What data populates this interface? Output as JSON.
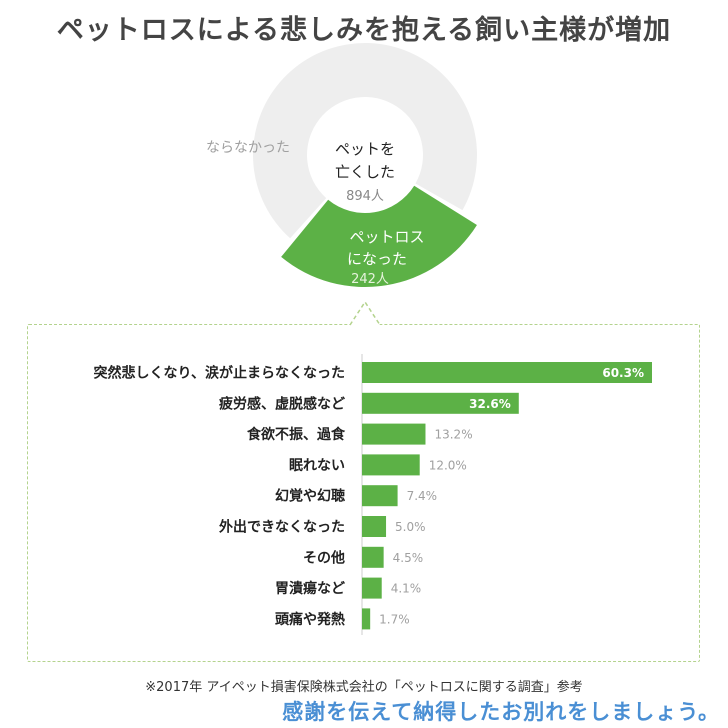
{
  "title": "ペットロスによる悲しみを抱える飼い主様が増加",
  "colors": {
    "accent": "#5cb146",
    "ring_light": "#eeeeee",
    "label_gray": "#a0a0a0",
    "message_blue": "#4a8fd4"
  },
  "chart_data": [
    {
      "type": "pie",
      "categories": [
        "ならなかった",
        "ペットロスになった"
      ],
      "values": [
        652,
        242
      ],
      "center_label": [
        "ペットを",
        "亡くした"
      ],
      "center_value": "894人",
      "slice_labels": {
        "highlight_line1": "ペットロス",
        "highlight_line2": "になった",
        "highlight_value": "242人",
        "rest": "ならなかった"
      }
    },
    {
      "type": "bar",
      "orientation": "horizontal",
      "categories": [
        "突然悲しくなり、涙が止まらなくなった",
        "疲労感、虚脱感など",
        "食欲不振、過食",
        "眠れない",
        "幻覚や幻聴",
        "外出できなくなった",
        "その他",
        "胃潰瘍など",
        "頭痛や発熱"
      ],
      "values": [
        60.3,
        32.6,
        13.2,
        12.0,
        7.4,
        5.0,
        4.5,
        4.1,
        1.7
      ],
      "value_labels": [
        "60.3%",
        "32.6%",
        "13.2%",
        "12.0%",
        "7.4%",
        "5.0%",
        "4.5%",
        "4.1%",
        "1.7%"
      ],
      "xlim": [
        0,
        60.3
      ]
    }
  ],
  "source_note": "※2017年 アイペット損害保険株式会社の「ペットロスに関する調査」参考",
  "closing_message": "感謝を伝えて納得したお別れをしましょう。"
}
